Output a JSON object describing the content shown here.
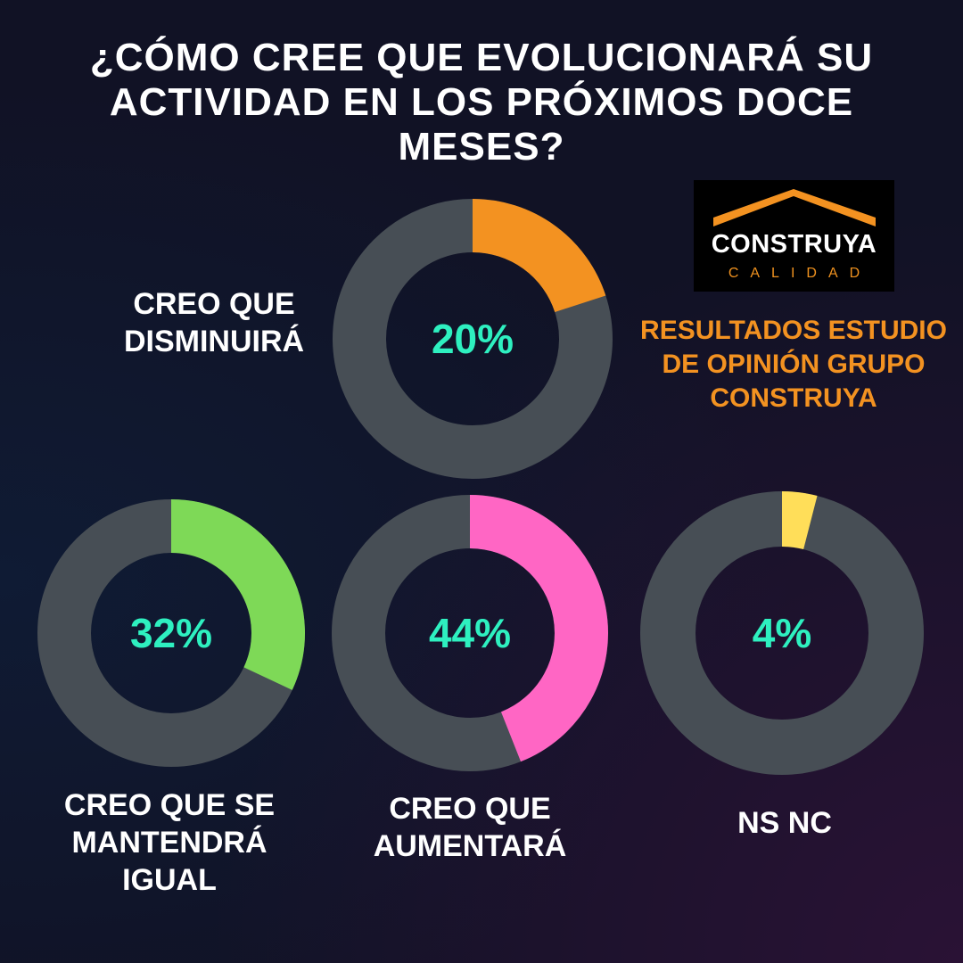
{
  "title": "¿CÓMO CREE QUE EVOLUCIONARÁ SU ACTIVIDAD EN LOS PRÓXIMOS DOCE MESES?",
  "logo": {
    "name": "CONSTRUYA",
    "sub": "CALIDAD"
  },
  "subtitle": "RESULTADOS ESTUDIO DE OPINIÓN GRUPO CONSTRUYA",
  "colors": {
    "track": "#474e55",
    "value_text": "#2ef0c0",
    "accent": "#f39221"
  },
  "chart_data": [
    {
      "type": "pie",
      "label": "CREO QUE DISMINUIRÁ",
      "value": 20,
      "value_label": "20%",
      "color": "#f39221"
    },
    {
      "type": "pie",
      "label": "CREO QUE SE MANTENDRÁ IGUAL",
      "value": 32,
      "value_label": "32%",
      "color": "#7ed957"
    },
    {
      "type": "pie",
      "label": "CREO QUE AUMENTARÁ",
      "value": 44,
      "value_label": "44%",
      "color": "#ff66c4"
    },
    {
      "type": "pie",
      "label": "NS NC",
      "value": 4,
      "value_label": "4%",
      "color": "#ffde59"
    }
  ]
}
